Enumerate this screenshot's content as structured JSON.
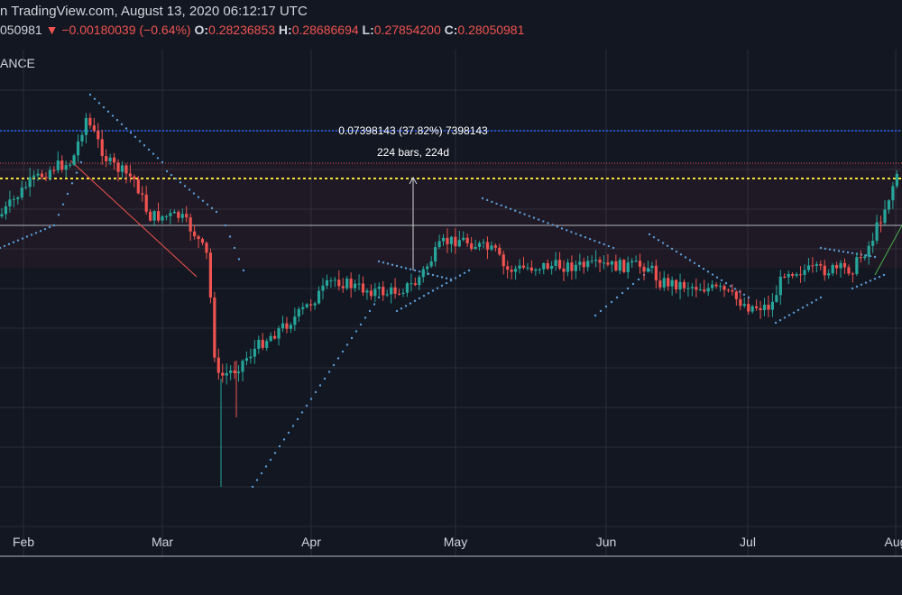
{
  "header": {
    "source": "n TradingView.com, August 13, 2020 06:12:17 UTC",
    "close_prefix": "050981",
    "change_arrow": "▼",
    "change": "−0.00180039 (−0.64%)",
    "o_label": "O:",
    "o_value": "0.28236853",
    "h_label": "H:",
    "h_value": "0.28686694",
    "l_label": "L:",
    "l_value": "0.27854200",
    "c_label": "C:",
    "c_value": "0.28050981"
  },
  "symbol_label": "ANCE",
  "measure": {
    "change_text": "0.07398143 (37.82%) 7398143",
    "bars_text": "224 bars, 224d"
  },
  "colors": {
    "background": "#131722",
    "up": "#26a69a",
    "down": "#ef5350",
    "psar": "#5b9bd5",
    "grid": "#2a2e39"
  },
  "chart_data": {
    "type": "candlestick",
    "x_ticks": [
      "Feb",
      "Mar",
      "Apr",
      "May",
      "Jun",
      "Jul",
      "Aug"
    ],
    "indicators": [
      "Parabolic SAR"
    ],
    "measurement": {
      "change": 0.07398143,
      "percent": 37.82,
      "bars": 224
    },
    "last_bar": {
      "open": 0.28236853,
      "high": 0.28686694,
      "low": 0.278542,
      "close": 0.28050981
    }
  }
}
